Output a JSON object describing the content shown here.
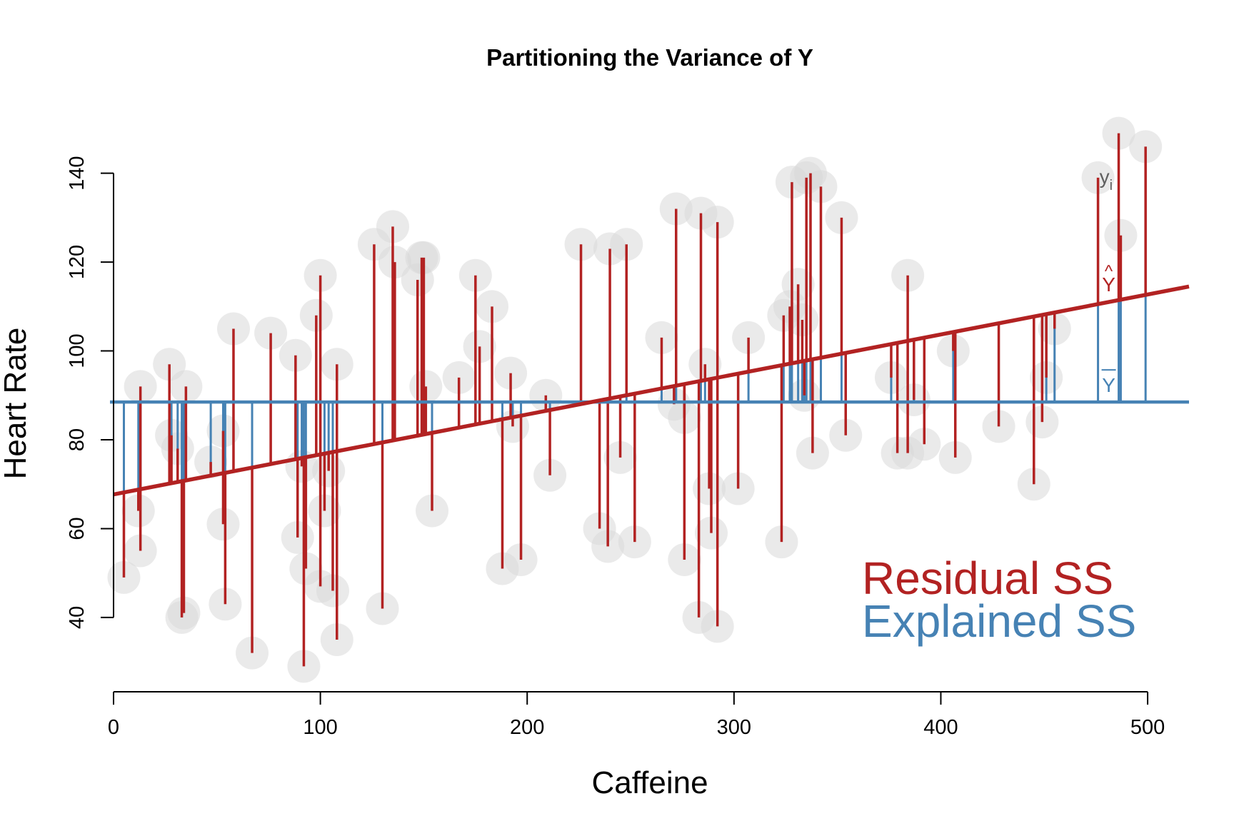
{
  "chart_data": {
    "type": "scatter",
    "title": "Partitioning the Variance of Y",
    "xlabel": "Caffeine",
    "ylabel": "Heart Rate",
    "xlim": [
      0,
      520
    ],
    "ylim": [
      26,
      152
    ],
    "x_ticks": [
      0,
      100,
      200,
      300,
      400,
      500
    ],
    "y_ticks": [
      40,
      60,
      80,
      100,
      120,
      140
    ],
    "grid": false,
    "legend_position": "bottom-right",
    "mean_y": 88.5,
    "regression": {
      "intercept": 67.7,
      "slope": 0.09
    },
    "annotations": {
      "yi_label": "y",
      "yi_subscript": "i",
      "yhat_label": "Y",
      "yhat_hat": "^",
      "ybar_label": "Y"
    },
    "legend": [
      {
        "name": "Residual SS",
        "color": "#b22222"
      },
      {
        "name": "Explained SS",
        "color": "#4682b4"
      }
    ],
    "colors": {
      "residual": "#b22222",
      "explained": "#4682b4",
      "point_fill": "#d9d9d9"
    },
    "points": [
      {
        "x": 5,
        "y": 49
      },
      {
        "x": 12,
        "y": 64
      },
      {
        "x": 13,
        "y": 55
      },
      {
        "x": 13,
        "y": 92
      },
      {
        "x": 27,
        "y": 97
      },
      {
        "x": 28,
        "y": 81
      },
      {
        "x": 31,
        "y": 78
      },
      {
        "x": 33,
        "y": 40
      },
      {
        "x": 34,
        "y": 41
      },
      {
        "x": 35,
        "y": 92
      },
      {
        "x": 47,
        "y": 75
      },
      {
        "x": 53,
        "y": 82
      },
      {
        "x": 53,
        "y": 61
      },
      {
        "x": 54,
        "y": 43
      },
      {
        "x": 58,
        "y": 105
      },
      {
        "x": 67,
        "y": 32
      },
      {
        "x": 76,
        "y": 104
      },
      {
        "x": 88,
        "y": 99
      },
      {
        "x": 89,
        "y": 58
      },
      {
        "x": 91,
        "y": 74
      },
      {
        "x": 92,
        "y": 29
      },
      {
        "x": 93,
        "y": 51
      },
      {
        "x": 98,
        "y": 108
      },
      {
        "x": 100,
        "y": 117
      },
      {
        "x": 100,
        "y": 47
      },
      {
        "x": 102,
        "y": 64
      },
      {
        "x": 104,
        "y": 73
      },
      {
        "x": 106,
        "y": 46
      },
      {
        "x": 108,
        "y": 97
      },
      {
        "x": 108,
        "y": 35
      },
      {
        "x": 126,
        "y": 124
      },
      {
        "x": 130,
        "y": 42
      },
      {
        "x": 135,
        "y": 128
      },
      {
        "x": 136,
        "y": 120
      },
      {
        "x": 147,
        "y": 116
      },
      {
        "x": 149,
        "y": 121
      },
      {
        "x": 150,
        "y": 121
      },
      {
        "x": 151,
        "y": 92
      },
      {
        "x": 154,
        "y": 64
      },
      {
        "x": 167,
        "y": 94
      },
      {
        "x": 175,
        "y": 117
      },
      {
        "x": 177,
        "y": 101
      },
      {
        "x": 183,
        "y": 110
      },
      {
        "x": 188,
        "y": 51
      },
      {
        "x": 192,
        "y": 95
      },
      {
        "x": 193,
        "y": 83
      },
      {
        "x": 197,
        "y": 53
      },
      {
        "x": 209,
        "y": 90
      },
      {
        "x": 211,
        "y": 72
      },
      {
        "x": 226,
        "y": 124
      },
      {
        "x": 235,
        "y": 60
      },
      {
        "x": 239,
        "y": 56
      },
      {
        "x": 240,
        "y": 123
      },
      {
        "x": 245,
        "y": 76
      },
      {
        "x": 248,
        "y": 124
      },
      {
        "x": 252,
        "y": 57
      },
      {
        "x": 265,
        "y": 103
      },
      {
        "x": 271,
        "y": 88
      },
      {
        "x": 272,
        "y": 132
      },
      {
        "x": 276,
        "y": 85
      },
      {
        "x": 276,
        "y": 53
      },
      {
        "x": 283,
        "y": 40
      },
      {
        "x": 284,
        "y": 131
      },
      {
        "x": 286,
        "y": 97
      },
      {
        "x": 288,
        "y": 69
      },
      {
        "x": 289,
        "y": 59
      },
      {
        "x": 292,
        "y": 129
      },
      {
        "x": 292,
        "y": 38
      },
      {
        "x": 302,
        "y": 69
      },
      {
        "x": 307,
        "y": 103
      },
      {
        "x": 323,
        "y": 57
      },
      {
        "x": 324,
        "y": 108
      },
      {
        "x": 327,
        "y": 110
      },
      {
        "x": 328,
        "y": 138
      },
      {
        "x": 331,
        "y": 115
      },
      {
        "x": 333,
        "y": 107
      },
      {
        "x": 334,
        "y": 90
      },
      {
        "x": 335,
        "y": 139
      },
      {
        "x": 337,
        "y": 140
      },
      {
        "x": 338,
        "y": 77
      },
      {
        "x": 342,
        "y": 137
      },
      {
        "x": 352,
        "y": 130
      },
      {
        "x": 354,
        "y": 81
      },
      {
        "x": 376,
        "y": 94
      },
      {
        "x": 379,
        "y": 77
      },
      {
        "x": 384,
        "y": 117
      },
      {
        "x": 384,
        "y": 77
      },
      {
        "x": 387,
        "y": 89
      },
      {
        "x": 392,
        "y": 79
      },
      {
        "x": 406,
        "y": 100
      },
      {
        "x": 407,
        "y": 76
      },
      {
        "x": 428,
        "y": 83
      },
      {
        "x": 445,
        "y": 70
      },
      {
        "x": 449,
        "y": 84
      },
      {
        "x": 451,
        "y": 94
      },
      {
        "x": 455,
        "y": 105
      },
      {
        "x": 476,
        "y": 139
      },
      {
        "x": 486,
        "y": 149
      },
      {
        "x": 487,
        "y": 126
      },
      {
        "x": 499,
        "y": 146
      }
    ]
  }
}
